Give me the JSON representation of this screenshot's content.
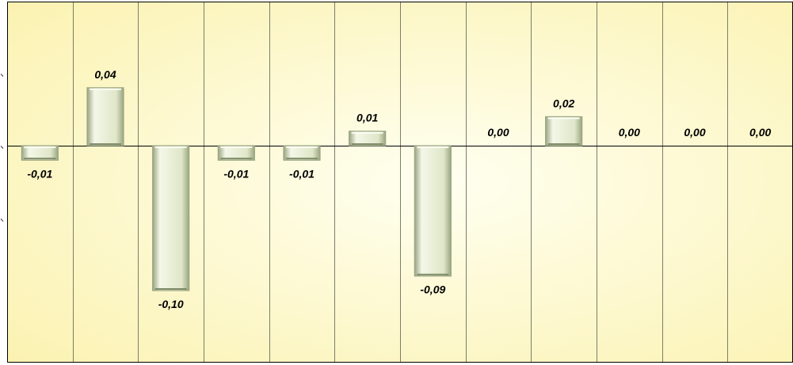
{
  "chart_data": {
    "type": "bar",
    "categories": [
      "",
      "",
      "",
      "",
      "",
      "",
      "",
      "",
      "",
      "",
      "",
      ""
    ],
    "values": [
      -0.01,
      0.04,
      -0.1,
      -0.01,
      -0.01,
      0.01,
      -0.09,
      0.0,
      0.02,
      0.0,
      0.0,
      0.0
    ],
    "labels": [
      "-0,01",
      "0,04",
      "-0,10",
      "-0,01",
      "-0,01",
      "0,01",
      "-0,09",
      "0,00",
      "0,02",
      "0,00",
      "0,00",
      "0,00"
    ],
    "ylim": [
      -0.15,
      0.1
    ],
    "grid": true,
    "legend": "none",
    "colors": {
      "bar_fill": "#dfe6c8",
      "bar_edge": "#9aa582",
      "bar_highlight": "#f4f7e8",
      "background_center": "#fffff0",
      "background_edge": "#fbf2b0",
      "gridline": "#7d7d6a",
      "zero_line": "#000000"
    }
  }
}
